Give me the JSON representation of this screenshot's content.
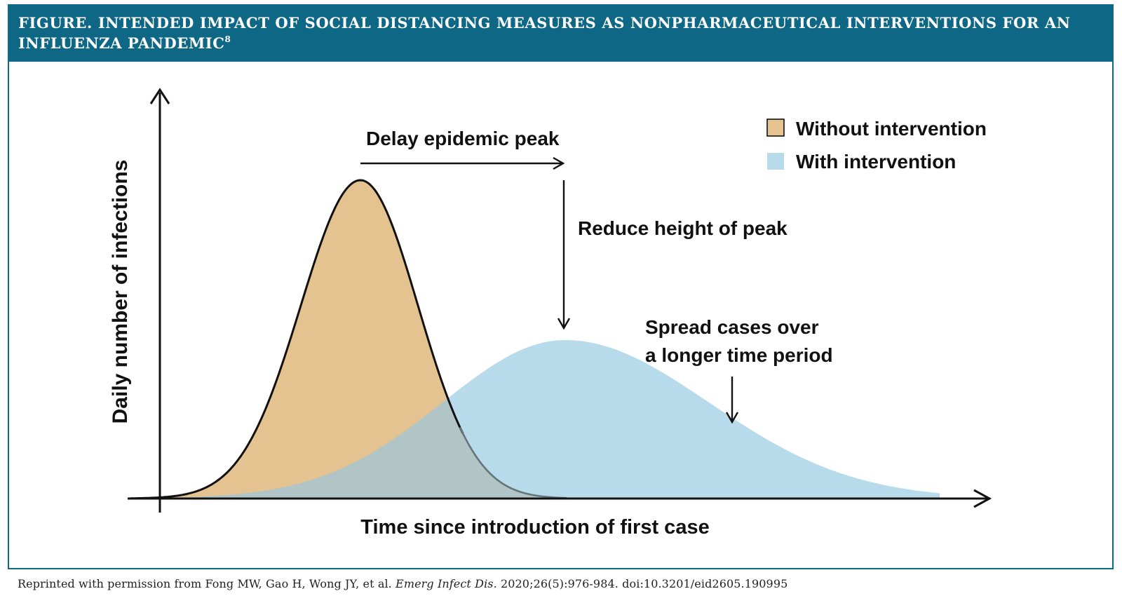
{
  "header": {
    "prefix": "FIGURE.",
    "title": "INTENDED IMPACT OF SOCIAL DISTANCING MEASURES AS NONPHARMACEUTICAL INTERVENTIONS FOR AN INFLUENZA PANDEMIC",
    "superscript": "8"
  },
  "diagram": {
    "y_axis_label": "Daily number of infections",
    "x_axis_label": "Time since introduction of first case",
    "annotation_delay": "Delay epidemic peak",
    "annotation_reduce": "Reduce height of peak",
    "annotation_spread_line1": "Spread cases over",
    "annotation_spread_line2": "a longer time period"
  },
  "legend": {
    "items": [
      {
        "label": "Without intervention",
        "color": "#e5c391"
      },
      {
        "label": "With intervention",
        "color": "#b7dbea"
      }
    ]
  },
  "colors": {
    "header_bg": "#0e6785",
    "frame_border": "#0d6b88",
    "without_fill": "#e5c391",
    "with_fill": "#b7dbea",
    "overlap_fill": "#b1c5c6"
  },
  "footer": {
    "text_before": "Reprinted with permission from Fong MW, Gao H, Wong JY, et al. ",
    "journal": "Emerg Infect Dis.",
    "text_after": " 2020;26(5):976-984. doi:10.3201/eid2605.190995"
  }
}
